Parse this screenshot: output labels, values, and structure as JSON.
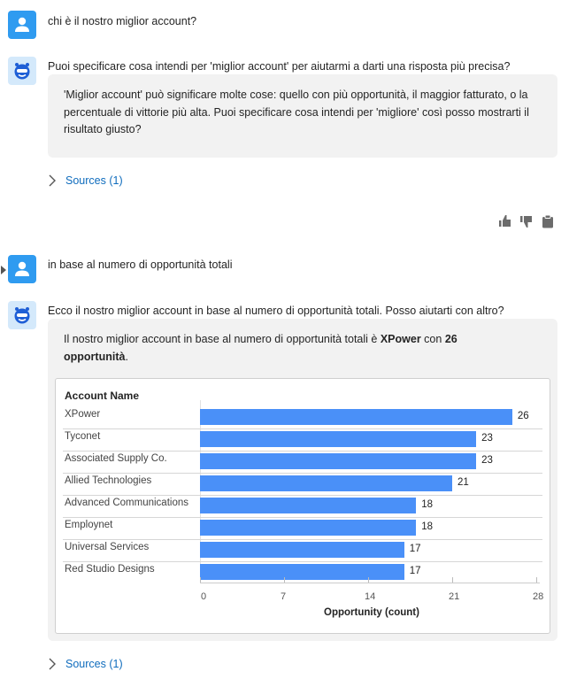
{
  "conversation": {
    "user_message_1": "chi è il nostro miglior account?",
    "bot_message_1": "Puoi specificare cosa intendi per 'miglior account' per aiutarmi a darti una risposta più precisa?",
    "bot_bubble_1": "'Miglior account' può significare molte cose: quello con più opportunità, il maggior fatturato, o la percentuale di vittorie più alta. Puoi specificare cosa intendi per 'migliore' così posso mostrarti il risultato giusto?",
    "sources_1": "Sources (1)",
    "user_message_2": "in base al numero di opportunità totali",
    "bot_message_2": "Ecco il nostro miglior account in base al numero di opportunità totali. Posso aiutarti con altro?",
    "bot_bubble_2": {
      "prefix": "Il nostro miglior account in base al numero di opportunità totali è ",
      "account": "XPower",
      "middle": " con ",
      "count": "26 opportunità",
      "suffix": "."
    },
    "sources_2": "Sources (1)"
  },
  "feedback_icons": [
    "thumbs-up-icon",
    "thumbs-down-icon",
    "clipboard-icon"
  ],
  "colors": {
    "user_avatar": "#2f9bf0",
    "bot_avatar_bg": "#d4e9fb",
    "bar": "#4a90f8",
    "link": "#0f6cbd"
  },
  "chart_data": {
    "type": "bar",
    "orientation": "horizontal",
    "category_header": "Account Name",
    "categories": [
      "XPower",
      "Tyconet",
      "Associated Supply Co.",
      "Allied Technologies",
      "Advanced Communications",
      "Employnet",
      "Universal Services",
      "Red Studio Designs"
    ],
    "values": [
      26,
      23,
      23,
      21,
      18,
      18,
      17,
      17
    ],
    "xlabel": "Opportunity (count)",
    "xlim": [
      0,
      28
    ],
    "xticks": [
      "0",
      "7",
      "14",
      "21",
      "28"
    ],
    "data_labels": true
  }
}
